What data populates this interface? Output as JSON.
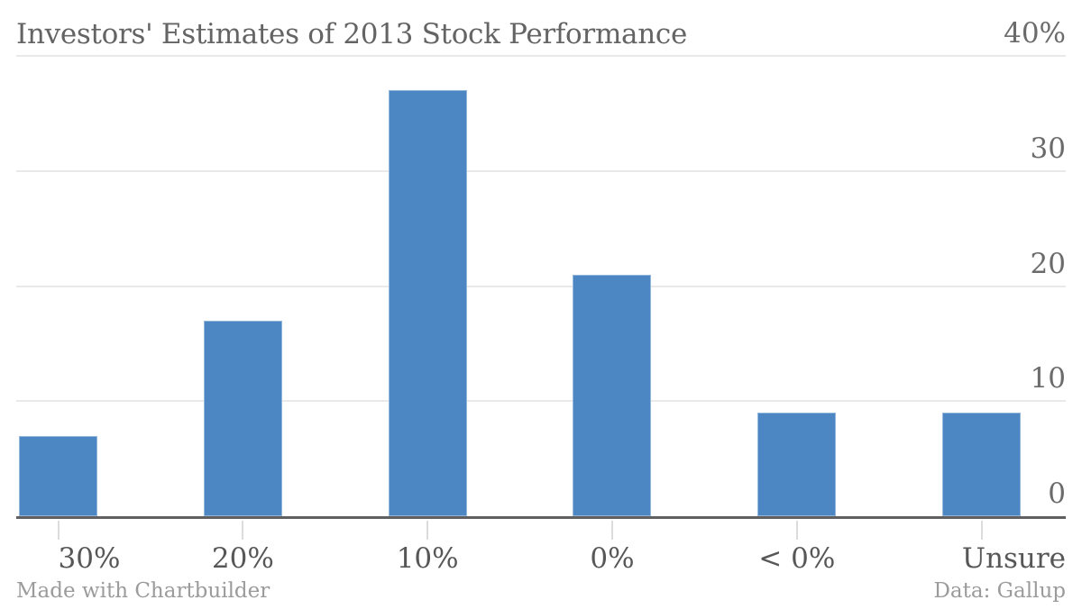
{
  "title": "Investors' Estimates of 2013 Stock Performance",
  "footer": {
    "left": "Made with Chartbuilder",
    "right": "Data: Gallup"
  },
  "colors": {
    "bar": "#4c87c3",
    "gridline": "#e9e9e9",
    "axis_line": "#606060",
    "xtick_mark": "#dcdcdc",
    "title_text": "#646464",
    "ytick_text": "#6b6b6b",
    "xtick_text": "#575757",
    "footer_text": "#9b9b9b",
    "background": "#ffffff"
  },
  "chart_data": {
    "type": "bar",
    "title": "Investors' Estimates of 2013 Stock Performance",
    "categories": [
      "30%",
      "20%",
      "10%",
      "0%",
      "< 0%",
      "Unsure"
    ],
    "values": [
      7,
      17,
      37,
      21,
      9,
      9
    ],
    "xlabel": "",
    "ylabel": "",
    "ylim": [
      0,
      40
    ],
    "yticks": [
      0,
      10,
      20,
      30,
      40
    ],
    "ytick_labels": [
      "0",
      "10",
      "20",
      "30",
      "40%"
    ],
    "ytick_label_side": "right",
    "grid": "horizontal",
    "legend": "none",
    "bar_color": "#4c87c3",
    "source_note": "Data: Gallup",
    "credit_note": "Made with Chartbuilder"
  }
}
